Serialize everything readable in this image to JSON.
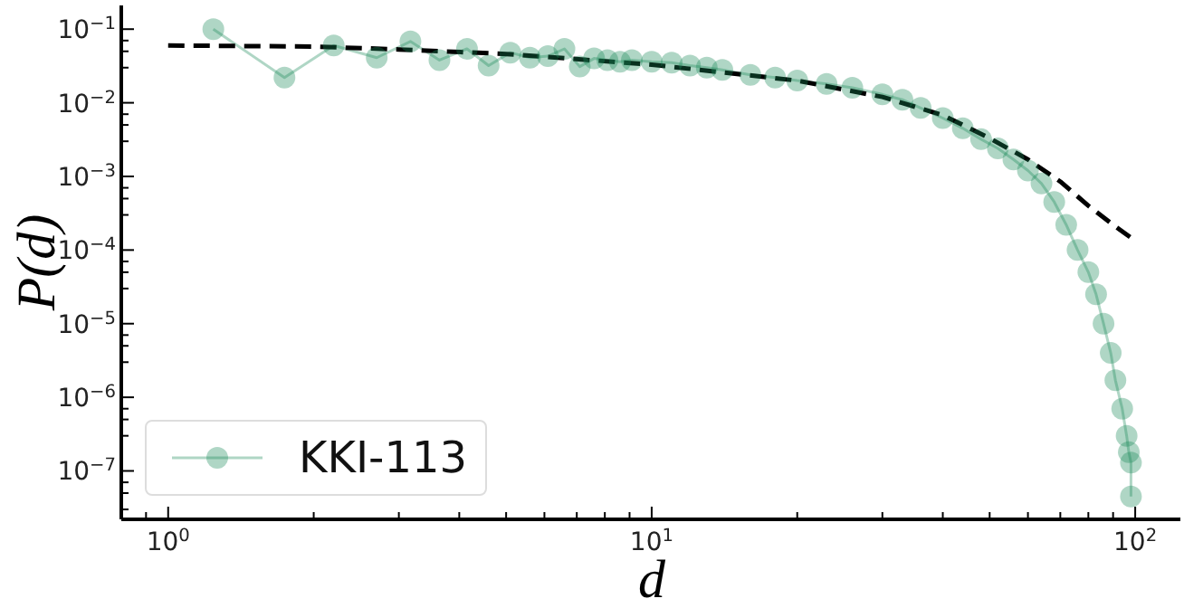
{
  "chart_data": {
    "type": "line",
    "xlabel": "d",
    "ylabel": "P(d)",
    "log": "xy",
    "xlim": [
      0.8,
      124
    ],
    "ylim": [
      2.2e-08,
      0.21
    ],
    "xticks": [
      {
        "value": 0.8,
        "label": null
      },
      {
        "value": 0.9,
        "label": null
      },
      {
        "value": 1,
        "label": "10$^{0}$"
      },
      {
        "value": 2,
        "label": null
      },
      {
        "value": 3,
        "label": null
      },
      {
        "value": 4,
        "label": null
      },
      {
        "value": 5,
        "label": null
      },
      {
        "value": 6,
        "label": null
      },
      {
        "value": 7,
        "label": null
      },
      {
        "value": 8,
        "label": null
      },
      {
        "value": 9,
        "label": null
      },
      {
        "value": 10,
        "label": "10$^{1}$"
      },
      {
        "value": 20,
        "label": null
      },
      {
        "value": 30,
        "label": null
      },
      {
        "value": 40,
        "label": null
      },
      {
        "value": 50,
        "label": null
      },
      {
        "value": 60,
        "label": null
      },
      {
        "value": 70,
        "label": null
      },
      {
        "value": 80,
        "label": null
      },
      {
        "value": 90,
        "label": null
      },
      {
        "value": 100,
        "label": "10$^{2}$"
      }
    ],
    "yticks": [
      {
        "value": 3e-08,
        "label": null
      },
      {
        "value": 5e-08,
        "label": null
      },
      {
        "value": 7e-08,
        "label": null
      },
      {
        "value": 1e-07,
        "label": "10$^{−7}$"
      },
      {
        "value": 3e-07,
        "label": null
      },
      {
        "value": 5e-07,
        "label": null
      },
      {
        "value": 7e-07,
        "label": null
      },
      {
        "value": 1e-06,
        "label": "10$^{−6}$"
      },
      {
        "value": 3e-06,
        "label": null
      },
      {
        "value": 5e-06,
        "label": null
      },
      {
        "value": 7e-06,
        "label": null
      },
      {
        "value": 1e-05,
        "label": "10$^{−5}$"
      },
      {
        "value": 3e-05,
        "label": null
      },
      {
        "value": 5e-05,
        "label": null
      },
      {
        "value": 7e-05,
        "label": null
      },
      {
        "value": 0.0001,
        "label": "10$^{−4}$"
      },
      {
        "value": 0.0003,
        "label": null
      },
      {
        "value": 0.0005,
        "label": null
      },
      {
        "value": 0.0007,
        "label": null
      },
      {
        "value": 0.001,
        "label": "10$^{−3}$"
      },
      {
        "value": 0.003,
        "label": null
      },
      {
        "value": 0.005,
        "label": null
      },
      {
        "value": 0.007,
        "label": null
      },
      {
        "value": 0.01,
        "label": "10$^{−2}$"
      },
      {
        "value": 0.03,
        "label": null
      },
      {
        "value": 0.05,
        "label": null
      },
      {
        "value": 0.07,
        "label": null
      },
      {
        "value": 0.1,
        "label": "10$^{−1}$"
      }
    ],
    "grid": false,
    "legend": "bottom left",
    "series": [
      {
        "name": "KKI-113",
        "type": "line",
        "marker": "circle",
        "line_style": "solid",
        "color": "#1b8a5a",
        "x": [
          1.24,
          1.74,
          2.2,
          2.7,
          3.17,
          3.64,
          4.15,
          4.6,
          5.1,
          5.6,
          6.1,
          6.6,
          7.1,
          7.6,
          8.1,
          8.6,
          9.1,
          10,
          11,
          12,
          13,
          14,
          16,
          18,
          20,
          23,
          26,
          30,
          33,
          36,
          40,
          44,
          48,
          52,
          56,
          60,
          64,
          68,
          72,
          76,
          80,
          83,
          86,
          89,
          91,
          94,
          96,
          97,
          98,
          98
        ],
        "values": [
          0.1,
          0.022,
          0.06,
          0.041,
          0.068,
          0.038,
          0.054,
          0.032,
          0.048,
          0.041,
          0.043,
          0.054,
          0.031,
          0.04,
          0.038,
          0.036,
          0.038,
          0.036,
          0.035,
          0.032,
          0.03,
          0.028,
          0.024,
          0.022,
          0.02,
          0.018,
          0.016,
          0.013,
          0.011,
          0.0085,
          0.0062,
          0.0045,
          0.0032,
          0.0024,
          0.0017,
          0.0012,
          0.0008,
          0.00045,
          0.00022,
          0.0001,
          5e-05,
          2.5e-05,
          1e-05,
          4e-06,
          1.7e-06,
          7e-07,
          3e-07,
          1.8e-07,
          1.3e-07,
          4.5e-08
        ]
      },
      {
        "type": "line",
        "marker": "none",
        "line_style": "dashed",
        "color": "#000000",
        "x": [
          1,
          2,
          3,
          5,
          10,
          20,
          30,
          40,
          50,
          60,
          70,
          80,
          90,
          99
        ],
        "values": [
          0.06,
          0.058,
          0.053,
          0.046,
          0.033,
          0.02,
          0.012,
          0.0068,
          0.0033,
          0.0017,
          0.00085,
          0.0004,
          0.00022,
          0.00014
        ]
      }
    ]
  }
}
